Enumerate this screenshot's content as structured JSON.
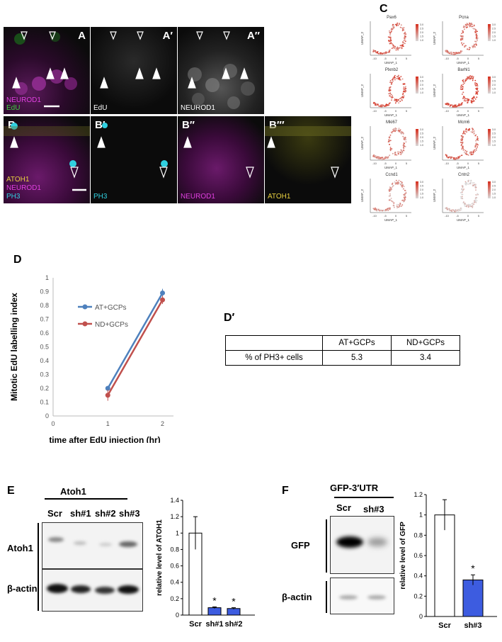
{
  "panel_letters": {
    "A": "A",
    "C": "C",
    "D": "D",
    "Dp": "D′",
    "E": "E",
    "F": "F"
  },
  "microscopy": {
    "row_a": [
      {
        "corner": "A",
        "labels": [
          "NEUROD1",
          "EdU"
        ],
        "label_colors": [
          "#e040e0",
          "#40d040"
        ]
      },
      {
        "corner": "A′",
        "labels": [
          "EdU"
        ],
        "label_colors": [
          "#ffffff"
        ]
      },
      {
        "corner": "A′′",
        "labels": [
          "NEUROD1"
        ],
        "label_colors": [
          "#ffffff"
        ]
      }
    ],
    "row_b": [
      {
        "corner": "B",
        "labels": [
          "ATOH1",
          "NEUROD1",
          "PH3"
        ],
        "label_colors": [
          "#e8d040",
          "#e040e0",
          "#30d0e0"
        ]
      },
      {
        "corner": "B′",
        "labels": [
          "PH3"
        ],
        "label_colors": [
          "#30d0e0"
        ]
      },
      {
        "corner": "B′′",
        "labels": [
          "NEUROD1"
        ],
        "label_colors": [
          "#e040e0"
        ]
      },
      {
        "corner": "B′′′",
        "labels": [
          "ATOH1"
        ],
        "label_colors": [
          "#e8d040"
        ]
      }
    ]
  },
  "umap": {
    "genes": [
      "Pax6",
      "Pcna",
      "Plxnb2",
      "Barhl1",
      "Mki67",
      "Mcm6",
      "Ccnd1",
      "Cntn2"
    ],
    "xlabel": "UMAP_1",
    "ylabel": "UMAP_2",
    "xticks": [
      "-10",
      "-5",
      "0",
      "5"
    ],
    "legend_ticks": [
      "3.0",
      "2.5",
      "2.0",
      "1.5",
      "1.0"
    ],
    "low_color": "#d9d9d9",
    "high_color": "#d7301f"
  },
  "chart_data": {
    "type": "line",
    "xlabel": "time after EdU injection (hr)",
    "ylabel": "Mitotic EdU labelling index",
    "xlim": [
      0,
      2.2
    ],
    "ylim": [
      0,
      1
    ],
    "xticks": [
      "0",
      "1",
      "2"
    ],
    "yticks": [
      "0",
      "0.1",
      "0.2",
      "0.3",
      "0.4",
      "0.5",
      "0.6",
      "0.7",
      "0.8",
      "0.9",
      "1"
    ],
    "x": [
      1,
      2
    ],
    "legend_position": "upper-left",
    "series": [
      {
        "name": "AT+GCPs",
        "color": "#4e81bd",
        "values": [
          0.2,
          0.89
        ],
        "errors": [
          0.01,
          0.03
        ]
      },
      {
        "name": "ND+GCPs",
        "color": "#c0504d",
        "values": [
          0.15,
          0.84
        ],
        "errors": [
          0.04,
          0.03
        ]
      }
    ]
  },
  "table_dp": {
    "headers": [
      "",
      "AT+GCPs",
      "ND+GCPs"
    ],
    "rows": [
      [
        "% of PH3+ cells",
        "5.3",
        "3.4"
      ]
    ]
  },
  "panel_e": {
    "construct": "Atoh1",
    "lanes": [
      "Scr",
      "sh#1",
      "sh#2",
      "sh#3"
    ],
    "rows": [
      "Atoh1",
      "β-actin"
    ],
    "bar": {
      "ylabel": "relative level of ATOH1",
      "categories": [
        "Scr",
        "sh#1",
        "sh#2"
      ],
      "values": [
        1.0,
        0.09,
        0.08
      ],
      "errors": [
        0.2,
        0.01,
        0.01
      ],
      "stars": [
        "",
        "*",
        "*"
      ],
      "colors": [
        "#ffffff",
        "#3d5ce0",
        "#3d5ce0"
      ],
      "yticks": [
        "0",
        "0.2",
        "0.4",
        "0.6",
        "0.8",
        "1",
        "1.2",
        "1.4"
      ],
      "ylim": [
        0,
        1.4
      ]
    }
  },
  "panel_f": {
    "construct": "GFP-3′UTR",
    "lanes": [
      "Scr",
      "sh#3"
    ],
    "rows": [
      "GFP",
      "β-actin"
    ],
    "bar": {
      "ylabel": "relative level of GFP",
      "categories": [
        "Scr",
        "sh#3"
      ],
      "values": [
        1.0,
        0.36
      ],
      "errors": [
        0.15,
        0.05
      ],
      "stars": [
        "",
        "*"
      ],
      "colors": [
        "#ffffff",
        "#3d5ce0"
      ],
      "yticks": [
        "0",
        "0.2",
        "0.4",
        "0.6",
        "0.8",
        "1",
        "1.2"
      ],
      "ylim": [
        0,
        1.2
      ]
    }
  }
}
